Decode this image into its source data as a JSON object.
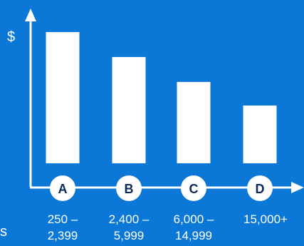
{
  "chart_data": {
    "type": "bar",
    "ylabel": "$",
    "categories": [
      "A",
      "B",
      "C",
      "D"
    ],
    "range_labels": [
      [
        "250 –",
        "2,399"
      ],
      [
        "2,400 –",
        "5,999"
      ],
      [
        "6,000 –",
        "14,999"
      ],
      [
        "15,000+"
      ]
    ],
    "values": [
      100,
      81,
      62,
      44
    ],
    "ylim": [
      0,
      100
    ],
    "grid": false,
    "legend": "none",
    "bar_color": "#ffffff",
    "background_color": "#0b78d7",
    "letter_color": "#0b2a5c"
  },
  "edge_text": "s"
}
